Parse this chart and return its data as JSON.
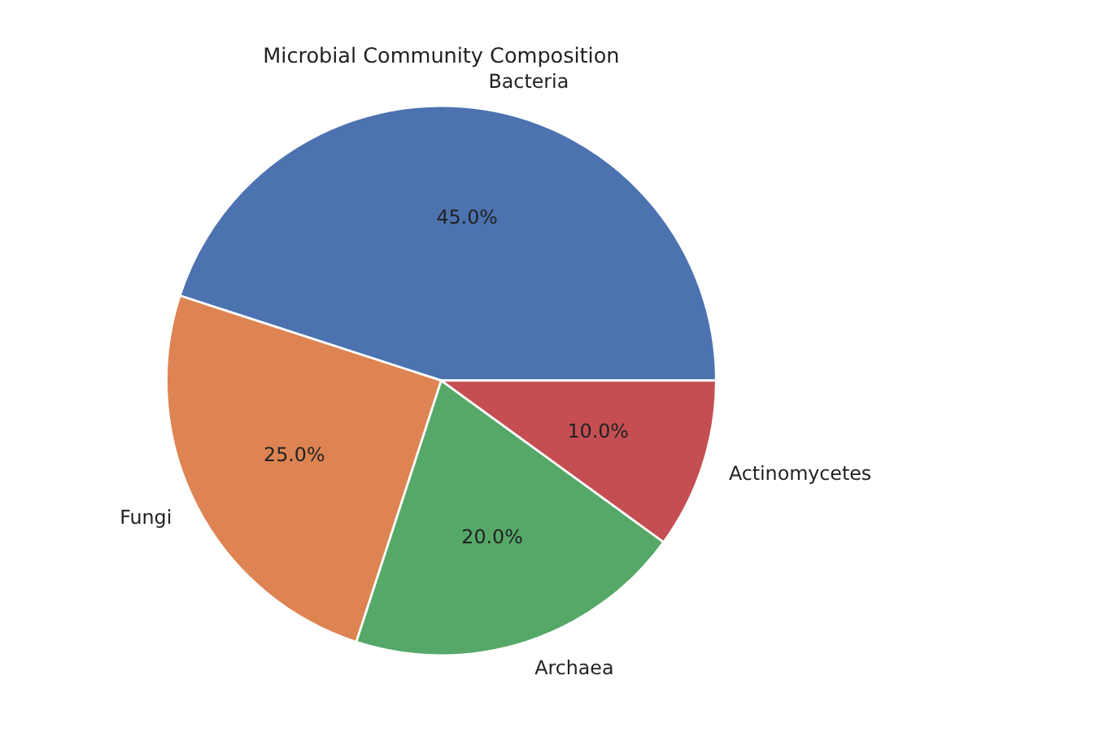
{
  "chart_data": {
    "type": "pie",
    "title": "Microbial Community Composition",
    "categories": [
      "Bacteria",
      "Fungi",
      "Archaea",
      "Actinomycetes"
    ],
    "values": [
      45,
      25,
      20,
      10
    ],
    "colors": [
      "#4c72b0",
      "#dd8452",
      "#55a868",
      "#c44e52"
    ],
    "value_labels": [
      "45.0%",
      "25.0%",
      "20.0%",
      "10.0%"
    ]
  }
}
